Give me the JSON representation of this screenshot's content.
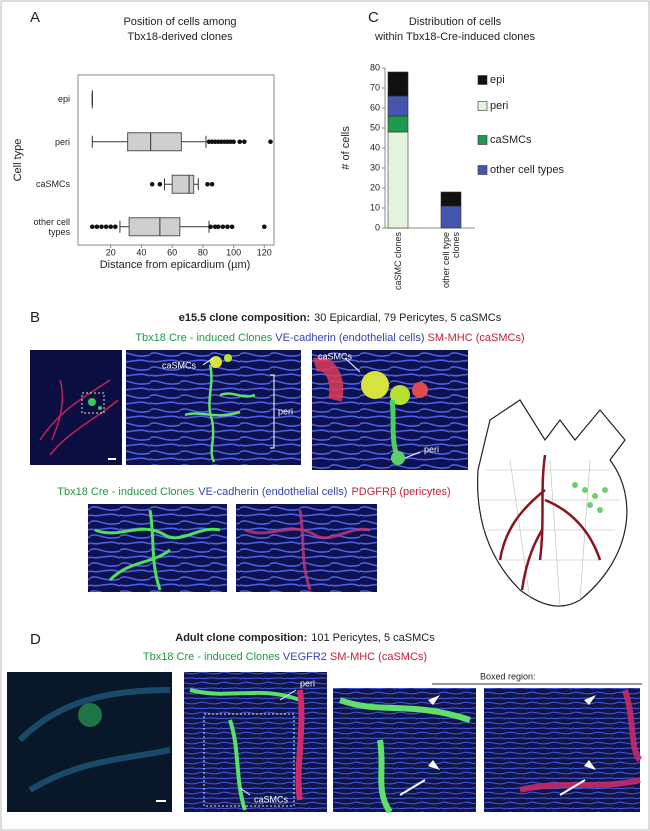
{
  "panel_labels": [
    "A",
    "B",
    "C",
    "D"
  ],
  "chart_data": [
    {
      "type": "box",
      "title": [
        "Position of cells among",
        "Tbx18-derived clones"
      ],
      "ylabel": "Cell type",
      "xlabel": "Distance from epicardium (µm)",
      "categories": [
        "epi",
        "peri",
        "caSMCs",
        "other cell types"
      ],
      "boxes": [
        {
          "min": 8,
          "q1": 8,
          "median": 8,
          "q3": 8,
          "max": 8,
          "outliers": []
        },
        {
          "min": 8,
          "q1": 31,
          "median": 46,
          "q3": 66,
          "max": 82,
          "outliers": [
            84,
            86,
            88,
            90,
            92,
            94,
            96,
            98,
            100,
            104,
            107,
            124
          ]
        },
        {
          "min": 55,
          "q1": 60,
          "median": 71,
          "q3": 74,
          "max": 77,
          "outliers": [
            47,
            52,
            83,
            86
          ]
        },
        {
          "min": 26,
          "q1": 32,
          "median": 52,
          "q3": 65,
          "max": 84,
          "outliers": [
            8,
            11,
            14,
            17,
            20,
            23,
            85,
            88,
            90,
            93,
            96,
            99,
            120
          ]
        }
      ],
      "color": "#cfcfcf",
      "xlim": [
        0,
        125
      ],
      "xticks": [
        20,
        40,
        60,
        80,
        100,
        120
      ]
    },
    {
      "type": "bar",
      "stacked": true,
      "title": [
        "Distribution of cells",
        "within Tbx18-Cre-induced clones"
      ],
      "ylabel": "# of cells",
      "categories": [
        "caSMC clones",
        "other cell type clones"
      ],
      "series": [
        {
          "name": "epi",
          "color": "#111111",
          "values": [
            12,
            7
          ]
        },
        {
          "name": "peri",
          "color": "#e4f4dc",
          "values": [
            48,
            0
          ]
        },
        {
          "name": "caSMCs",
          "color": "#1f9a4c",
          "values": [
            8,
            0
          ]
        },
        {
          "name": "other cell types",
          "color": "#4456b0",
          "values": [
            10,
            11
          ]
        }
      ],
      "ylim": [
        0,
        80
      ],
      "yticks": [
        0,
        10,
        20,
        30,
        40,
        50,
        60,
        70,
        80
      ]
    }
  ],
  "panel_b": {
    "heading_bold": "e15.5 clone composition:",
    "heading": "30 Epicardial, 79 Pericytes, 5 caSMCs",
    "legend_1": [
      "Tbx18 Cre - induced Clones",
      "VE-cadherin (endothelial cells)",
      "SM-MHC (caSMCs)"
    ],
    "image_labels": [
      "caSMCs",
      "peri",
      "caSMCs",
      "peri"
    ],
    "legend_2": [
      "Tbx18 Cre - induced Clones",
      "VE-cadherin (endothelial cells)",
      "PDGFRβ (pericytes)"
    ]
  },
  "panel_d": {
    "heading_bold": "Adult clone composition:",
    "heading": "101 Pericytes, 5 caSMCs",
    "legend": [
      "Tbx18 Cre - induced Clones",
      "VEGFR2",
      "SM-MHC (caSMCs)"
    ],
    "boxed_region": "Boxed region:",
    "image_labels": [
      "peri",
      "caSMCs"
    ]
  }
}
